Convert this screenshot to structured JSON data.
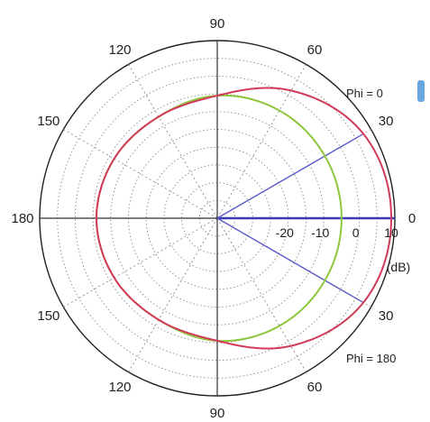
{
  "chart_data": {
    "type": "polar",
    "angle_ticks": [
      {
        "angle": 90,
        "label": "90"
      },
      {
        "angle": 60,
        "label": "60"
      },
      {
        "angle": 30,
        "label": "30"
      },
      {
        "angle": 0,
        "label": "0"
      },
      {
        "angle": 120,
        "label": "120"
      },
      {
        "angle": 150,
        "label": "150"
      },
      {
        "angle": 180,
        "label": "180"
      },
      {
        "angle": 210,
        "label": "150"
      },
      {
        "angle": 240,
        "label": "120"
      },
      {
        "angle": 270,
        "label": "90"
      },
      {
        "angle": 300,
        "label": "60"
      },
      {
        "angle": 330,
        "label": "30"
      }
    ],
    "radial_ticks": [
      {
        "value": -20,
        "label": "-20"
      },
      {
        "value": -10,
        "label": "-10"
      },
      {
        "value": 0,
        "label": "0"
      },
      {
        "value": 10,
        "label": "10"
      }
    ],
    "radial_unit": "(dB)",
    "rlim": [
      -40,
      10
    ],
    "grid": true,
    "series": [
      {
        "name": "Phi = 0",
        "color": "#d23a5a",
        "points": [
          {
            "theta": 0,
            "r": 9
          },
          {
            "theta": 30,
            "r": 7.5
          },
          {
            "theta": 60,
            "r": 1.5
          },
          {
            "theta": 90,
            "r": -5.5
          },
          {
            "theta": 120,
            "r": -7
          },
          {
            "theta": 150,
            "r": -6.5
          },
          {
            "theta": 180,
            "r": -6
          },
          {
            "theta": 210,
            "r": -6.5
          },
          {
            "theta": 240,
            "r": -7
          },
          {
            "theta": 270,
            "r": -5.5
          },
          {
            "theta": 300,
            "r": 1.5
          },
          {
            "theta": 330,
            "r": 7.5
          }
        ]
      },
      {
        "name": "Phi = 180",
        "color": "#8fc63c",
        "points": [
          {
            "theta": 0,
            "r": -5
          },
          {
            "theta": 30,
            "r": -5
          },
          {
            "theta": 60,
            "r": -5
          },
          {
            "theta": 90,
            "r": -5.5
          },
          {
            "theta": 120,
            "r": -7
          },
          {
            "theta": 150,
            "r": -6.5
          },
          {
            "theta": 180,
            "r": -6
          },
          {
            "theta": 210,
            "r": -6.5
          },
          {
            "theta": 240,
            "r": -7
          },
          {
            "theta": 270,
            "r": -5.5
          },
          {
            "theta": 300,
            "r": -5
          },
          {
            "theta": 330,
            "r": -5
          }
        ]
      }
    ],
    "beam_rays": [
      {
        "theta": 0,
        "r": 10,
        "color": "#3a3ab8"
      },
      {
        "theta": 30,
        "r": 7.5,
        "color": "#5a5ac8"
      },
      {
        "theta": 330,
        "r": 7.5,
        "color": "#5a5ac8"
      }
    ],
    "legend": [
      {
        "label": "Phi = 0",
        "position": "top-right"
      },
      {
        "label": "Phi = 180",
        "position": "bottom-right"
      }
    ]
  }
}
